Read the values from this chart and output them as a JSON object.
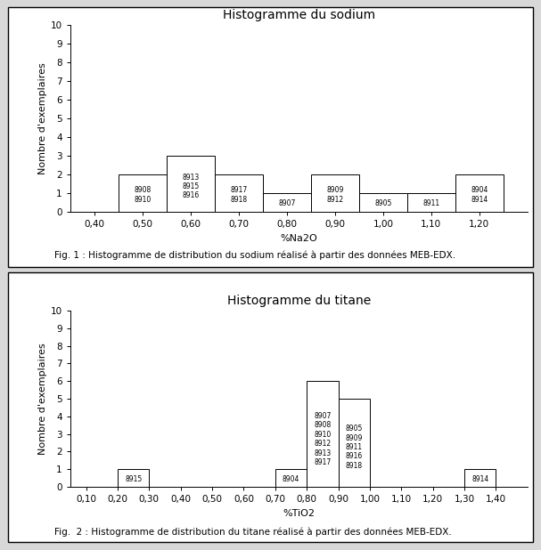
{
  "chart1": {
    "title": "Histogramme du sodium",
    "xlabel": "%Na2O",
    "ylabel": "Nombre d'exemplaires",
    "xlim": [
      0.35,
      1.3
    ],
    "ylim": [
      0,
      10
    ],
    "yticks": [
      0,
      1,
      2,
      3,
      4,
      5,
      6,
      7,
      8,
      9,
      10
    ],
    "xticks": [
      0.4,
      0.5,
      0.6,
      0.7,
      0.8,
      0.9,
      1.0,
      1.1,
      1.2
    ],
    "xtick_labels": [
      "0,40",
      "0,50",
      "0,60",
      "0,70",
      "0,80",
      "0,90",
      "1,00",
      "1,10",
      "1,20"
    ],
    "bin_centers": [
      0.5,
      0.6,
      0.7,
      0.8,
      0.9,
      1.0,
      1.1,
      1.2
    ],
    "heights": [
      2,
      3,
      2,
      1,
      2,
      1,
      1,
      2
    ],
    "bin_width": 0.1,
    "labels": [
      [
        "8908",
        "8910"
      ],
      [
        "8913",
        "8915",
        "8916"
      ],
      [
        "8917",
        "8918"
      ],
      [
        "8907"
      ],
      [
        "8909",
        "8912"
      ],
      [
        "8905"
      ],
      [
        "8911"
      ],
      [
        "8904",
        "8914"
      ]
    ],
    "caption": "Fig. 1 : Histogramme de distribution du sodium réalisé à partir des données MEB-EDX."
  },
  "chart2": {
    "title": "Histogramme du titane",
    "xlabel": "%TiO2",
    "ylabel": "Nombre d'exemplaires",
    "xlim": [
      0.05,
      1.5
    ],
    "ylim": [
      0,
      10
    ],
    "yticks": [
      0,
      1,
      2,
      3,
      4,
      5,
      6,
      7,
      8,
      9,
      10
    ],
    "xticks": [
      0.1,
      0.2,
      0.3,
      0.4,
      0.5,
      0.6,
      0.7,
      0.8,
      0.9,
      1.0,
      1.1,
      1.2,
      1.3,
      1.4
    ],
    "xtick_labels": [
      "0,10",
      "0,20",
      "0,30",
      "0,40",
      "0,50",
      "0,60",
      "0,70",
      "0,80",
      "0,90",
      "1,00",
      "1,10",
      "1,20",
      "1,30",
      "1,40"
    ],
    "bin_centers": [
      0.15,
      0.25,
      0.35,
      0.45,
      0.55,
      0.65,
      0.75,
      0.85,
      0.95,
      1.05,
      1.15,
      1.25,
      1.35
    ],
    "heights": [
      0,
      1,
      0,
      0,
      0,
      0,
      1,
      6,
      5,
      0,
      0,
      0,
      1
    ],
    "bin_width": 0.1,
    "labels": [
      [],
      [
        "8915"
      ],
      [],
      [],
      [],
      [],
      [
        "8904"
      ],
      [
        "8907",
        "8908",
        "8910",
        "8912",
        "8913",
        "8917"
      ],
      [
        "8905",
        "8909",
        "8911",
        "8916",
        "8918"
      ],
      [],
      [],
      [],
      [
        "8914"
      ]
    ],
    "caption": "Fig.  2 : Histogramme de distribution du titane réalisé à partir des données MEB-EDX."
  },
  "background_color": "#d8d8d8",
  "panel_background": "#ffffff",
  "bar_facecolor": "#ffffff",
  "bar_edgecolor": "#000000",
  "text_color": "#000000",
  "title_fontsize": 10,
  "label_fontsize": 8,
  "tick_fontsize": 7.5,
  "caption_fontsize": 7.5,
  "bar_label_fontsize": 5.5
}
